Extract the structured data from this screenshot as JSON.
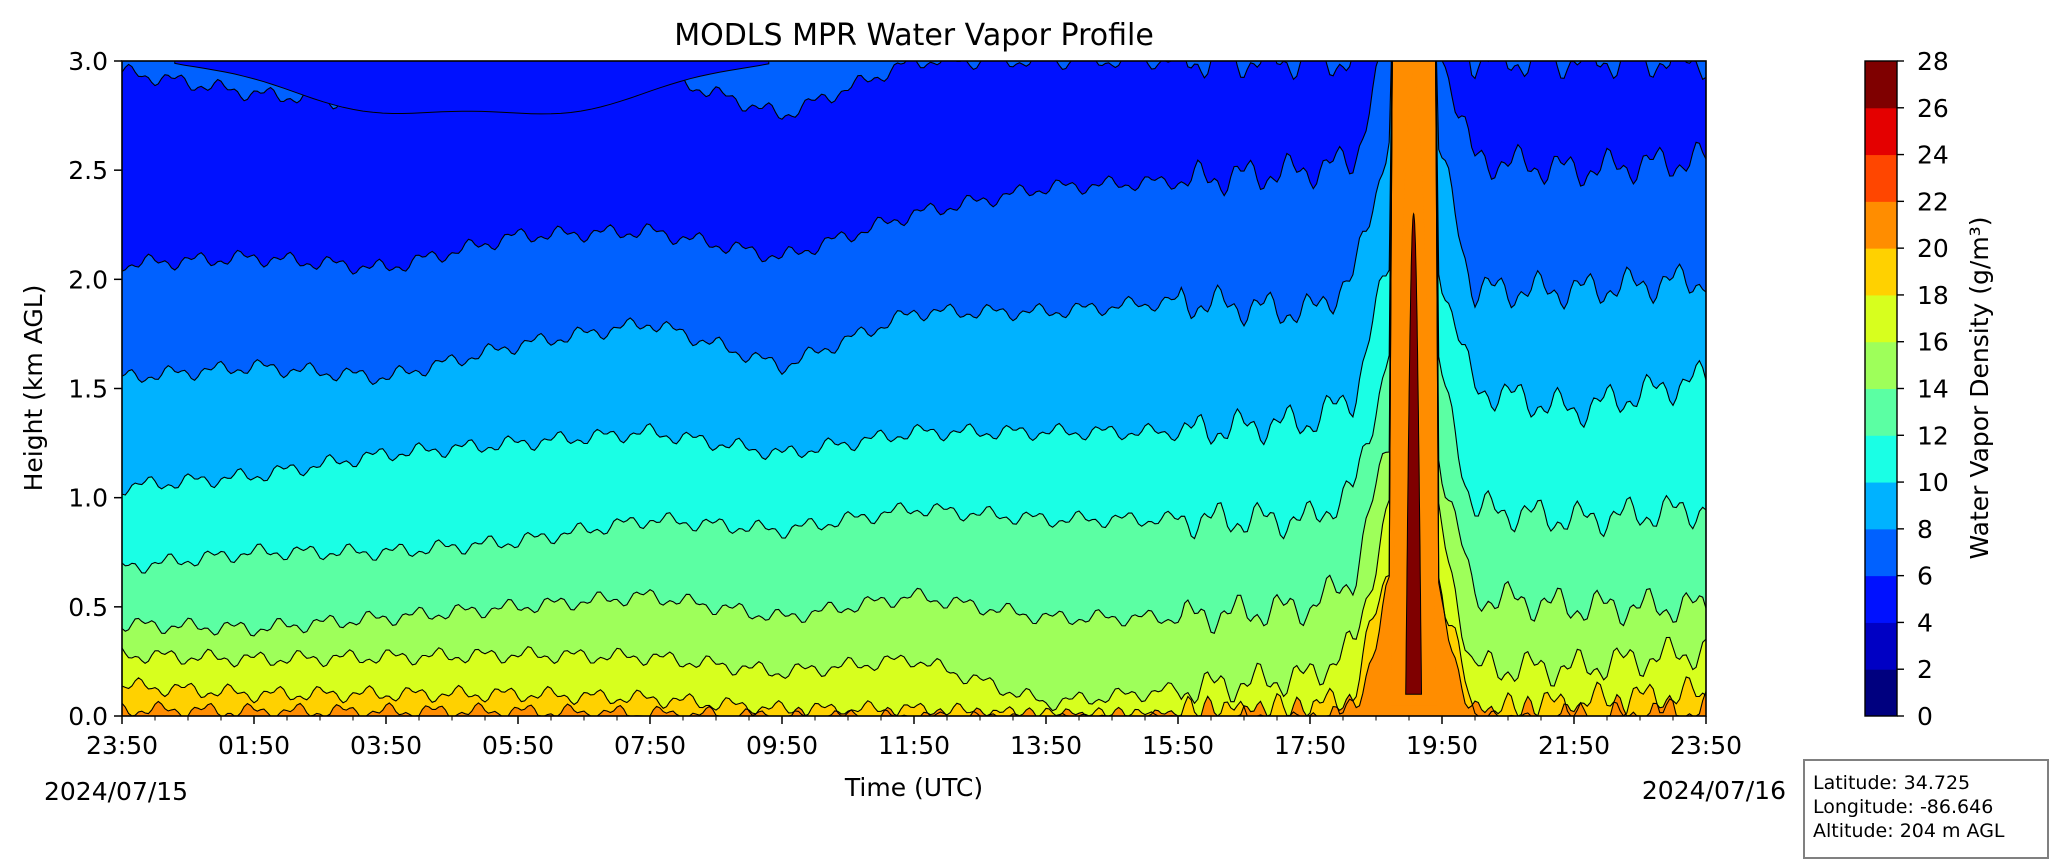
{
  "chart_data": {
    "type": "heatmap",
    "subtype": "filled-contour",
    "title": "MODLS MPR Water Vapor Profile",
    "xlabel": "Time (UTC)",
    "ylabel": "Height (km AGL)",
    "x_tick_labels": [
      "23:50",
      "01:50",
      "03:50",
      "05:50",
      "07:50",
      "09:50",
      "11:50",
      "13:50",
      "15:50",
      "17:50",
      "19:50",
      "21:50",
      "23:50"
    ],
    "x_range_hours": [
      0,
      24
    ],
    "start_date_label": "2024/07/15",
    "end_date_label": "2024/07/16",
    "y_ticks": [
      0.0,
      0.5,
      1.0,
      1.5,
      2.0,
      2.5,
      3.0
    ],
    "y_tick_labels": [
      "0.0",
      "0.5",
      "1.0",
      "1.5",
      "2.0",
      "2.5",
      "3.0"
    ],
    "ylim": [
      0,
      3
    ],
    "colorbar": {
      "label": "Water Vapor Density (g/m³)",
      "levels": [
        0,
        2,
        4,
        6,
        8,
        10,
        12,
        14,
        16,
        18,
        20,
        22,
        24,
        26,
        28
      ],
      "tick_labels": [
        "0",
        "2",
        "4",
        "6",
        "8",
        "10",
        "12",
        "14",
        "16",
        "18",
        "20",
        "22",
        "24",
        "26",
        "28"
      ],
      "colors": [
        "#00007f",
        "#0000c4",
        "#0011ff",
        "#0061ff",
        "#00b2ff",
        "#1affe5",
        "#5bffa3",
        "#9eff5a",
        "#d7ff1e",
        "#ffd100",
        "#ff8d00",
        "#ff4600",
        "#e40000",
        "#7f0000"
      ]
    },
    "contour_heights_km": {
      "description": "approximate height (km AGL) of each isoline at 2-hour steps from 23:50 to 23:50",
      "times_hours": [
        0,
        2,
        4,
        6,
        8,
        10,
        12,
        14,
        16,
        18,
        19.5,
        20.5,
        22,
        24
      ],
      "levels": {
        "4": [
          2.95,
          2.85,
          2.8,
          2.95,
          2.95,
          2.75,
          3.0,
          3.0,
          3.0,
          3.0,
          3.0,
          3.0,
          3.0,
          3.0
        ],
        "6": [
          2.07,
          2.1,
          2.05,
          2.2,
          2.22,
          2.1,
          2.3,
          2.42,
          2.45,
          2.5,
          2.6,
          2.55,
          2.5,
          2.55
        ],
        "8": [
          1.55,
          1.6,
          1.55,
          1.7,
          1.8,
          1.6,
          1.85,
          1.85,
          1.9,
          1.85,
          2.2,
          1.95,
          1.95,
          2.0
        ],
        "10": [
          1.05,
          1.1,
          1.2,
          1.25,
          1.3,
          1.2,
          1.3,
          1.3,
          1.3,
          1.35,
          1.6,
          1.5,
          1.4,
          1.55
        ],
        "12": [
          0.68,
          0.75,
          0.75,
          0.8,
          0.9,
          0.85,
          0.95,
          0.9,
          0.9,
          0.9,
          1.2,
          0.95,
          0.9,
          0.95
        ],
        "14": [
          0.42,
          0.4,
          0.45,
          0.5,
          0.55,
          0.45,
          0.55,
          0.45,
          0.45,
          0.5,
          0.8,
          0.55,
          0.5,
          0.5
        ],
        "16": [
          0.28,
          0.26,
          0.27,
          0.28,
          0.27,
          0.2,
          0.26,
          0.06,
          0.12,
          0.18,
          0.5,
          0.22,
          0.22,
          0.3
        ],
        "18": [
          0.14,
          0.1,
          0.1,
          0.1,
          0.08,
          0.03,
          0.03,
          0.0,
          0.0,
          0.02,
          0.2,
          0.0,
          0.06,
          0.1
        ],
        "20": [
          0.03,
          0.02,
          0.02,
          0.02,
          0.01,
          0.0,
          0.0,
          0.0,
          0.0,
          0.0,
          0.05,
          0.0,
          0.0,
          0.03
        ]
      }
    },
    "moist_plume": {
      "center_time_label": "19:50",
      "peak_value_gm3": 28
    },
    "grid": false
  },
  "info": {
    "latitude": "Latitude: 34.725",
    "longitude": "Longitude: -86.646",
    "altitude": "Altitude: 204 m AGL"
  }
}
